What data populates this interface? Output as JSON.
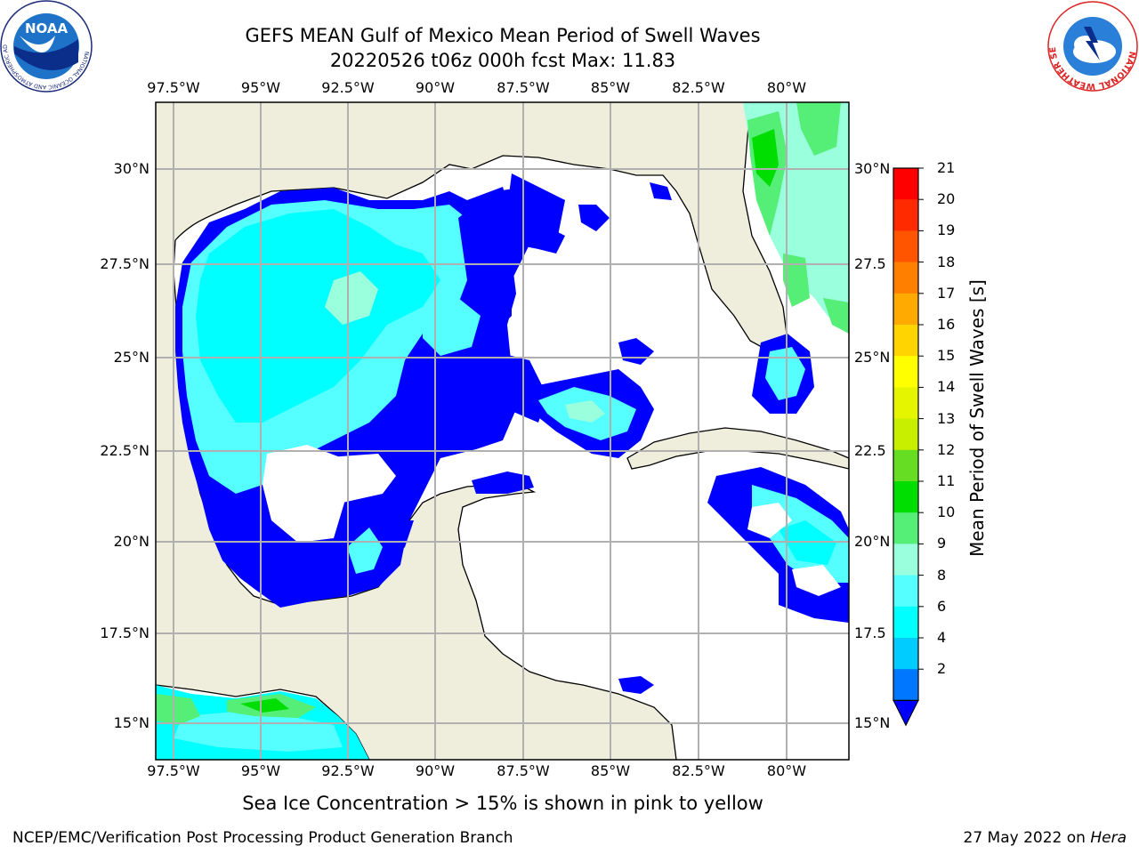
{
  "title": {
    "line1": "GEFS MEAN Gulf of Mexico Mean Period of Swell Waves",
    "line2": "20220526 t06z 000h fcst   Max: 11.83"
  },
  "map": {
    "lon_ticks": [
      "97.5°W",
      "95°W",
      "92.5°W",
      "90°W",
      "87.5°W",
      "85°W",
      "82.5°W",
      "80°W"
    ],
    "lat_ticks_left": [
      "30°N",
      "27.5°N",
      "25°N",
      "22.5°N",
      "20°N",
      "17.5°N",
      "15°N"
    ],
    "lat_ticks_right": [
      "30°N",
      "27.5",
      "25°N",
      "22.5",
      "20°N",
      "17.5",
      "15°N"
    ]
  },
  "colorbar": {
    "label": "Mean Period of Swell Waves [s]",
    "ticks": [
      "21",
      "20",
      "19",
      "18",
      "17",
      "16",
      "15",
      "14",
      "13",
      "12",
      "11",
      "10",
      "9",
      "8",
      "6",
      "4",
      "2"
    ],
    "colors": [
      "#ff0000",
      "#ff2a00",
      "#ff5500",
      "#ff7f00",
      "#ffaa00",
      "#ffd400",
      "#ffff00",
      "#e5f500",
      "#c8ee00",
      "#66dd22",
      "#00dd00",
      "#55ee77",
      "#99ffdd",
      "#55ffff",
      "#00ffff",
      "#00ccff",
      "#0077ff"
    ],
    "extend_color": "#0000ff"
  },
  "note": "Sea Ice Concentration > 15% is shown in pink to yellow",
  "footer": {
    "left": "NCEP/EMC/Verification Post Processing Product Generation Branch",
    "date": "27 May 2022 on",
    "host": "Hera"
  },
  "logos": {
    "left": "NOAA",
    "left_ring": "NATIONAL OCEANIC AND ATMOSPHERIC ADMINISTRATION · U.S. DEPARTMENT OF COMMERCE",
    "right_ring": "NATIONAL WEATHER SERVICE"
  }
}
